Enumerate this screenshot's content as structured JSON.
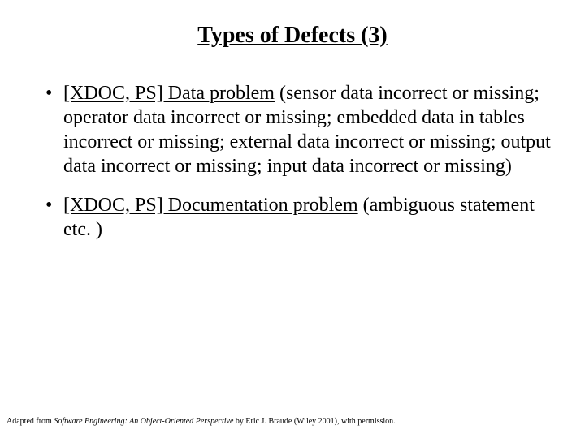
{
  "title": "Types of Defects (3)",
  "bullets": [
    {
      "tag": "[XDOC, PS] Data problem",
      "rest": " (sensor data incorrect or missing; operator data incorrect or missing; embedded data in tables incorrect or missing; external data incorrect or missing; output data incorrect or missing; input data incorrect or missing)"
    },
    {
      "tag": "[XDOC, PS] Documentation problem",
      "rest": " (ambiguous statement etc. )"
    }
  ],
  "citation": {
    "prefix": "Adapted from ",
    "book": "Software Engineering: An Object-Oriented Perspective",
    "suffix": " by Eric J. Braude (Wiley 2001), with permission."
  },
  "colors": {
    "background": "#ffffff",
    "text": "#000000"
  },
  "typography": {
    "title_fontsize": 28,
    "body_fontsize": 24,
    "citation_fontsize": 10,
    "font_family": "Times New Roman"
  }
}
